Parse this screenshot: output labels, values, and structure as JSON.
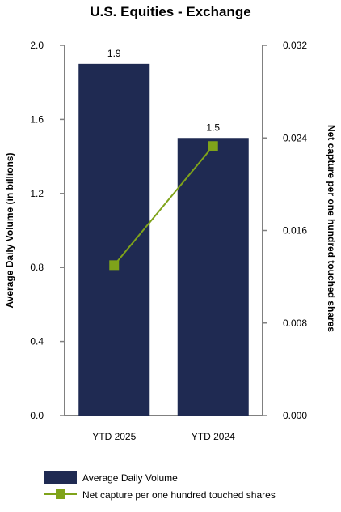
{
  "chart_data": {
    "type": "bar",
    "title": "U.S. Equities - Exchange",
    "categories": [
      "YTD 2025",
      "YTD 2024"
    ],
    "series": [
      {
        "name": "Average Daily Volume",
        "type": "bar",
        "axis": "left",
        "values": [
          1.9,
          1.5
        ],
        "data_labels": [
          "1.9",
          "1.5"
        ],
        "color": "#1f2a52"
      },
      {
        "name": "Net capture per one hundred touched shares",
        "type": "line",
        "axis": "right",
        "values": [
          0.013,
          0.0233
        ],
        "color": "#7fa31a"
      }
    ],
    "ylabel": "Average Daily Volume (in billions)",
    "ylabel_right": "Net capture per one hundred touched shares",
    "ylim": [
      0,
      2.0
    ],
    "ylim_right": [
      0,
      0.032
    ],
    "yticks": [
      "0.0",
      "0.4",
      "0.8",
      "1.2",
      "1.6",
      "2.0"
    ],
    "yticks_right": [
      "0.000",
      "0.008",
      "0.016",
      "0.024",
      "0.032"
    ],
    "grid": false,
    "legend_position": "bottom-left"
  }
}
